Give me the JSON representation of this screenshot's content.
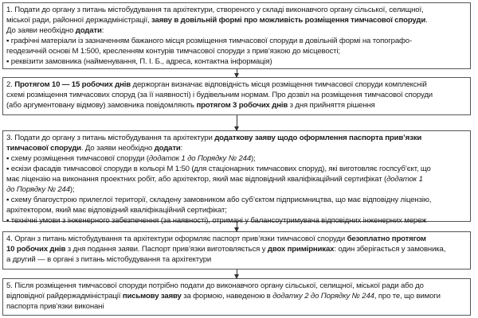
{
  "steps": [
    {
      "lines": [
        [
          {
            "t": "1. Подати до органу з питань містобудування та архітектури, створеного у складі виконавчого органу сільської, селищної,"
          }
        ],
        [
          {
            "t": "міської ради, районної держадміністрації, "
          },
          {
            "t": "заяву в довільній формі про можливість розміщення тимчасової споруди",
            "b": true
          },
          {
            "t": "."
          }
        ],
        [
          {
            "t": "До заяви необхідно "
          },
          {
            "t": "додати",
            "b": true
          },
          {
            "t": ":"
          }
        ],
        [
          {
            "t": "▪  графічні матеріали із зазначенням бажаного місця розміщення тимчасової споруди в довільній формі на топографо-"
          }
        ],
        [
          {
            "t": "геодезичній основі М 1:500, кресленням контурів тимчасової споруди з прив’язкою до місцевості;"
          }
        ],
        [
          {
            "t": "▪  реквізити замовника (найменування, П. І. Б., адреса, контактна інформація)"
          }
        ]
      ]
    },
    {
      "lines": [
        [
          {
            "t": "2. "
          },
          {
            "t": "Протягом 10 — 15 робочих днів",
            "b": true
          },
          {
            "t": " держорган визначає відповідність місця розміщення тимчасової споруди комплексній"
          }
        ],
        [
          {
            "t": "схемі розміщення тимчасових споруд (за її наявності) і будівельним нормам. Про дозвіл на розміщення тимчасової споруди"
          }
        ],
        [
          {
            "t": "(або аргументовану відмову) замовника повідомляють "
          },
          {
            "t": "протягом 3 робочих днів",
            "b": true
          },
          {
            "t": " з дня прийняття рішення"
          }
        ]
      ]
    },
    {
      "lines": [
        [
          {
            "t": "3. Подати до органу з питань містобудування та архітектури "
          },
          {
            "t": "додаткову заяву щодо оформлення паспорта прив’язки",
            "b": true
          }
        ],
        [
          {
            "t": "тимчасової споруди",
            "b": true
          },
          {
            "t": ". До заяви необхідно "
          },
          {
            "t": "додати",
            "b": true
          },
          {
            "t": ":"
          }
        ],
        [
          {
            "t": "▪  схему розміщення тимчасової споруди ("
          },
          {
            "t": "додаток 1 до Порядку № 244",
            "i": true
          },
          {
            "t": ");"
          }
        ],
        [
          {
            "t": "▪  ескізи фасадів тимчасової споруди в кольорі М 1:50 (для стаціонарних тимчасових споруд), які виготовляє госпсуб’єкт, що"
          }
        ],
        [
          {
            "t": "має ліцензію на виконання проектних робіт, або архітектор, який має відповідний кваліфікаційний сертифікат ("
          },
          {
            "t": "додаток 1",
            "i": true
          }
        ],
        [
          {
            "t": "до Порядку № 244",
            "i": true
          },
          {
            "t": ");"
          }
        ],
        [
          {
            "t": "▪  схему благоустрою прилеглої території, складену замовником або суб’єктом підприємництва, що має відповідну ліцензію,"
          }
        ],
        [
          {
            "t": "архітектором, який має відповідний кваліфікаційний сертифікат;"
          }
        ],
        [
          {
            "t": "▪  технічні умови з інженерного забезпечення (за наявності), отримані у балансоутримувача відповідних інженерних мереж"
          }
        ]
      ]
    },
    {
      "lines": [
        [
          {
            "t": "4. Орган з питань містобудування та архітектури оформляє паспорт прив’язки тимчасової споруди "
          },
          {
            "t": "безоплатно протягом",
            "b": true
          }
        ],
        [
          {
            "t": "10 робочих днів",
            "b": true
          },
          {
            "t": " з дня подання заяви. Паспорт прив’язки виготовляється у "
          },
          {
            "t": "двох примірниках",
            "b": true
          },
          {
            "t": ": один зберігається у замовника,"
          }
        ],
        [
          {
            "t": "а другий — в органі з питань містобудування та архітектури"
          }
        ]
      ]
    },
    {
      "lines": [
        [
          {
            "t": "5. Після розміщення тимчасової споруди потрібно подати до виконавчого органу сільської, селищної, міської ради або до"
          }
        ],
        [
          {
            "t": "відповідної райдержадміністрації "
          },
          {
            "t": "письмову заяву",
            "b": true
          },
          {
            "t": " за формою, наведеною в "
          },
          {
            "t": "додатку 2 до Порядку № 244",
            "i": true
          },
          {
            "t": ", про те, що вимоги"
          }
        ],
        [
          {
            "t": "паспорта прив’язки виконані"
          }
        ]
      ]
    }
  ]
}
